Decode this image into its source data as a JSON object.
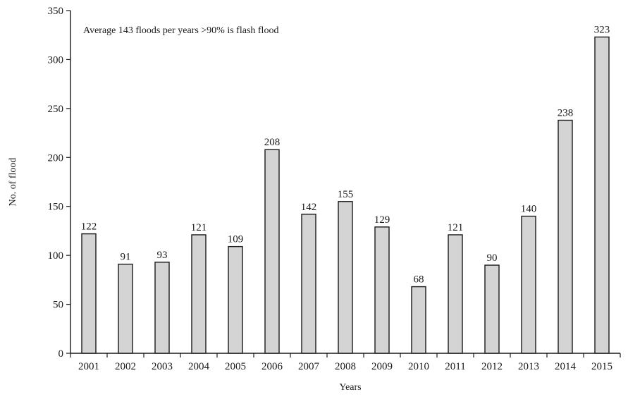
{
  "chart_data": {
    "type": "bar",
    "annotation": "Average 143 floods per years >90% is flash flood",
    "xlabel": "Years",
    "ylabel": "No. of flood",
    "ylim": [
      0,
      350
    ],
    "yticks": [
      0,
      50,
      100,
      150,
      200,
      250,
      300,
      350
    ],
    "categories": [
      "2001",
      "2002",
      "2003",
      "2004",
      "2005",
      "2006",
      "2007",
      "2008",
      "2009",
      "2010",
      "2011",
      "2012",
      "2013",
      "2014",
      "2015"
    ],
    "values": [
      122,
      91,
      93,
      121,
      109,
      208,
      142,
      155,
      129,
      68,
      121,
      90,
      140,
      238,
      323
    ],
    "data_labels": [
      "122",
      "91",
      "93",
      "121",
      "109",
      "208",
      "142",
      "155",
      "129",
      "68",
      "121",
      "90",
      "140",
      "238",
      "323"
    ],
    "grid": false,
    "bar_color": "#d4d4d4"
  }
}
